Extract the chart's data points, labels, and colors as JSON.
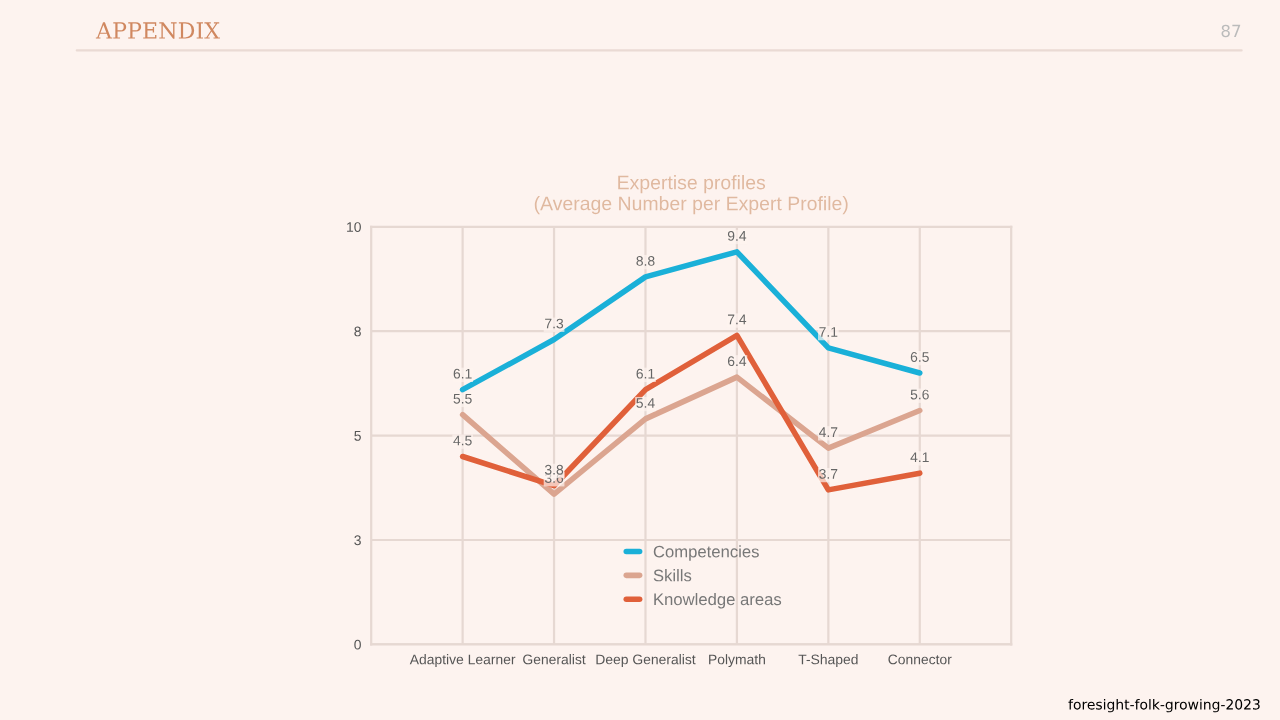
{
  "chart_data": {
    "type": "line",
    "title": "Expertise profiles\n(Average Number per Expert Profile)",
    "categories": [
      "Adaptive Learner",
      "Generalist",
      "Deep Generalist",
      "Polymath",
      "T-Shaped",
      "Connector"
    ],
    "series": [
      {
        "name": "Competencies",
        "color": "#1ab0d8",
        "values": [
          6.1,
          7.3,
          8.8,
          9.4,
          7.1,
          6.5
        ]
      },
      {
        "name": "Skills",
        "color": "#dba590",
        "values": [
          5.5,
          3.6,
          5.4,
          6.4,
          4.7,
          5.6
        ]
      },
      {
        "name": "Knowledge areas",
        "color": "#e0603a",
        "values": [
          4.5,
          3.8,
          6.1,
          7.4,
          3.7,
          4.1
        ]
      }
    ],
    "ylim": [
      0,
      10
    ],
    "yticks": [
      0,
      {
        "value": 2.5,
        "label": "3"
      },
      5,
      {
        "value": 7.5,
        "label": "8"
      },
      10
    ],
    "grid": true,
    "legend": "bottom",
    "data_labels": true,
    "marker": "none",
    "line_style": "solid",
    "annotations": [
      "APPENDIX",
      "87",
      "foresight-folk-growing-2023"
    ]
  }
}
